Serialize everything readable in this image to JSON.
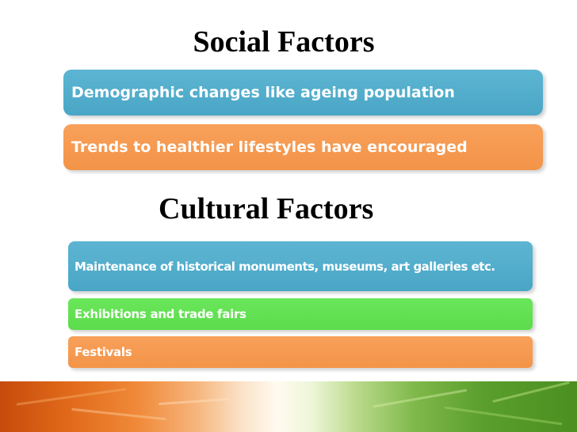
{
  "slide": {
    "social_title": "Social Factors",
    "social_items": [
      "Demographic changes like ageing population",
      "Trends to healthier lifestyles have encouraged"
    ],
    "cultural_title": "Cultural Factors",
    "cultural_items": [
      "Maintenance of historical monuments, museums, art galleries etc.",
      "Exhibitions and trade fairs",
      "Festivals"
    ]
  },
  "colors": {
    "blue_box": "#4fadcc",
    "orange_box": "#f59a50",
    "green_box": "#62e052",
    "banner_left": "#c64b0c",
    "banner_right": "#4b8f22"
  }
}
